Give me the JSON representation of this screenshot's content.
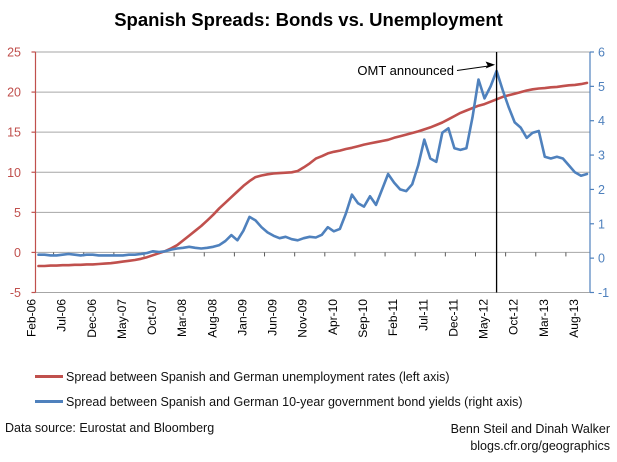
{
  "title": "Spanish Spreads: Bonds vs. Unemployment",
  "legend": [
    {
      "label": "Spread between Spanish and German unemployment rates (left axis)",
      "color": "#C0504D"
    },
    {
      "label": "Spread between Spanish and German 10-year government bond yields (right axis)",
      "color": "#4F81BD"
    }
  ],
  "footer": {
    "source": "Data source: Eurostat and Bloomberg",
    "credit": "Benn Steil and Dinah Walker",
    "url": "blogs.cfr.org/geographics"
  },
  "chart_data": {
    "type": "line",
    "title": "Spanish Spreads: Bonds vs. Unemployment",
    "grid": true,
    "legend_position": "bottom",
    "colors": {
      "left_series": "#C0504D",
      "right_series": "#4F81BD",
      "grid": "#A6A6A6",
      "event_line": "#000000"
    },
    "x_tick_labels": [
      "Feb-06",
      "Jul-06",
      "Dec-06",
      "May-07",
      "Oct-07",
      "Mar-08",
      "Aug-08",
      "Jan-09",
      "Jun-09",
      "Nov-09",
      "Apr-10",
      "Sep-10",
      "Feb-11",
      "Jul-11",
      "Dec-11",
      "May-12",
      "Oct-12",
      "Mar-13",
      "Aug-13"
    ],
    "x": [
      "Feb-06",
      "Mar-06",
      "Apr-06",
      "May-06",
      "Jun-06",
      "Jul-06",
      "Aug-06",
      "Sep-06",
      "Oct-06",
      "Nov-06",
      "Dec-06",
      "Jan-07",
      "Feb-07",
      "Mar-07",
      "Apr-07",
      "May-07",
      "Jun-07",
      "Jul-07",
      "Aug-07",
      "Sep-07",
      "Oct-07",
      "Nov-07",
      "Dec-07",
      "Jan-08",
      "Feb-08",
      "Mar-08",
      "Apr-08",
      "May-08",
      "Jun-08",
      "Jul-08",
      "Aug-08",
      "Sep-08",
      "Oct-08",
      "Nov-08",
      "Dec-08",
      "Jan-09",
      "Feb-09",
      "Mar-09",
      "Apr-09",
      "May-09",
      "Jun-09",
      "Jul-09",
      "Aug-09",
      "Sep-09",
      "Oct-09",
      "Nov-09",
      "Dec-09",
      "Jan-10",
      "Feb-10",
      "Mar-10",
      "Apr-10",
      "May-10",
      "Jun-10",
      "Jul-10",
      "Aug-10",
      "Sep-10",
      "Oct-10",
      "Nov-10",
      "Dec-10",
      "Jan-11",
      "Feb-11",
      "Mar-11",
      "Apr-11",
      "May-11",
      "Jun-11",
      "Jul-11",
      "Aug-11",
      "Sep-11",
      "Oct-11",
      "Nov-11",
      "Dec-11",
      "Jan-12",
      "Feb-12",
      "Mar-12",
      "Apr-12",
      "May-12",
      "Jun-12",
      "Jul-12",
      "Aug-12",
      "Sep-12",
      "Oct-12",
      "Nov-12",
      "Dec-12",
      "Jan-13",
      "Feb-13",
      "Mar-13",
      "Apr-13",
      "May-13",
      "Jun-13",
      "Jul-13",
      "Aug-13",
      "Sep-13"
    ],
    "left_axis": {
      "min": -5,
      "max": 25,
      "ticks": [
        25,
        20,
        15,
        10,
        5,
        0,
        -5
      ],
      "color": "#C0504D",
      "label_color": "#C0504D"
    },
    "right_axis": {
      "min": -1,
      "max": 6,
      "ticks": [
        6,
        5,
        4,
        3,
        2,
        1,
        0,
        -1
      ],
      "color": "#4F81BD",
      "label_color": "#4F81BD"
    },
    "annotation": {
      "label": "OMT announced",
      "category_index": 76,
      "month": "Jun-12"
    },
    "series": [
      {
        "name": "Spread between Spanish and German unemployment rates (left axis)",
        "axis": "left",
        "color": "#C0504D",
        "values": [
          -1.7,
          -1.7,
          -1.65,
          -1.65,
          -1.6,
          -1.6,
          -1.55,
          -1.55,
          -1.5,
          -1.5,
          -1.45,
          -1.4,
          -1.35,
          -1.25,
          -1.15,
          -1.05,
          -0.95,
          -0.8,
          -0.6,
          -0.35,
          -0.1,
          0.15,
          0.5,
          0.9,
          1.5,
          2.1,
          2.7,
          3.3,
          4.0,
          4.7,
          5.5,
          6.2,
          6.9,
          7.6,
          8.3,
          8.9,
          9.4,
          9.6,
          9.75,
          9.85,
          9.9,
          9.95,
          10.0,
          10.15,
          10.6,
          11.1,
          11.7,
          12.0,
          12.35,
          12.55,
          12.7,
          12.9,
          13.05,
          13.25,
          13.45,
          13.6,
          13.75,
          13.9,
          14.05,
          14.3,
          14.5,
          14.7,
          14.9,
          15.1,
          15.35,
          15.6,
          15.9,
          16.2,
          16.6,
          17.0,
          17.4,
          17.7,
          18.0,
          18.3,
          18.5,
          18.8,
          19.1,
          19.4,
          19.6,
          19.8,
          20.0,
          20.2,
          20.35,
          20.45,
          20.5,
          20.6,
          20.65,
          20.75,
          20.85,
          20.9,
          21.0,
          21.15
        ]
      },
      {
        "name": "Spread between Spanish and German 10-year government bond yields (right axis)",
        "axis": "right",
        "color": "#4F81BD",
        "values": [
          0.1,
          0.1,
          0.08,
          0.08,
          0.1,
          0.12,
          0.1,
          0.08,
          0.1,
          0.1,
          0.08,
          0.08,
          0.08,
          0.08,
          0.08,
          0.1,
          0.1,
          0.12,
          0.15,
          0.2,
          0.18,
          0.2,
          0.25,
          0.28,
          0.3,
          0.33,
          0.3,
          0.28,
          0.3,
          0.33,
          0.38,
          0.5,
          0.67,
          0.52,
          0.8,
          1.2,
          1.1,
          0.9,
          0.75,
          0.65,
          0.58,
          0.62,
          0.55,
          0.52,
          0.58,
          0.62,
          0.6,
          0.68,
          0.9,
          0.78,
          0.85,
          1.3,
          1.85,
          1.6,
          1.5,
          1.8,
          1.55,
          2.0,
          2.45,
          2.2,
          2.0,
          1.95,
          2.15,
          2.7,
          3.45,
          2.9,
          2.8,
          3.65,
          3.78,
          3.2,
          3.15,
          3.2,
          4.1,
          5.2,
          4.65,
          5.0,
          5.45,
          4.9,
          4.4,
          3.95,
          3.8,
          3.5,
          3.65,
          3.7,
          2.95,
          2.9,
          2.95,
          2.9,
          2.7,
          2.5,
          2.4,
          2.45
        ]
      }
    ]
  }
}
